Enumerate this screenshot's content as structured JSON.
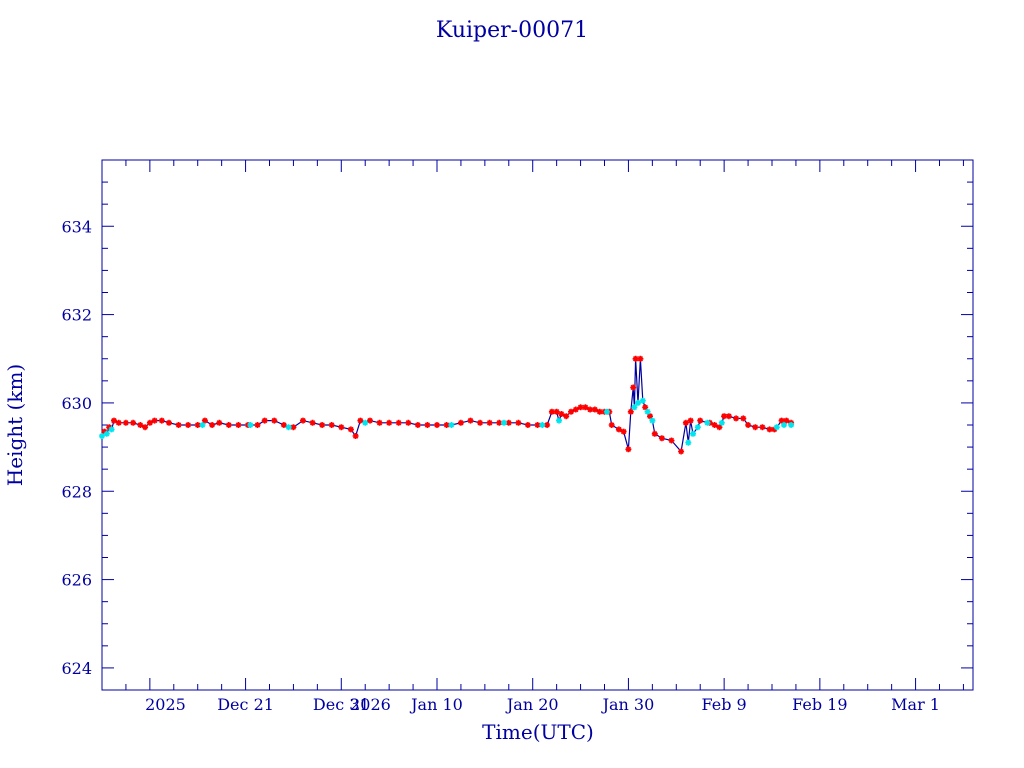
{
  "chart_data": {
    "type": "line",
    "title": "Kuiper-00071",
    "xlabel": "Time(UTC)",
    "ylabel": "Height (km)",
    "x_unit": "date (UTC)",
    "xlim": [
      "2025-12-06",
      "2026-03-07"
    ],
    "ylim": [
      623.5,
      635.5
    ],
    "x_ticks": [
      {
        "date": "2025-12-11",
        "label": "2025"
      },
      {
        "date": "2025-12-21",
        "label": "Dec 21"
      },
      {
        "date": "2025-12-31",
        "label": "Dec 31"
      },
      {
        "date": "2026-01-01",
        "label": "2026"
      },
      {
        "date": "2026-01-10",
        "label": "Jan 10"
      },
      {
        "date": "2026-01-20",
        "label": "Jan 20"
      },
      {
        "date": "2026-01-30",
        "label": "Jan 30"
      },
      {
        "date": "2026-02-09",
        "label": "Feb  9"
      },
      {
        "date": "2026-02-19",
        "label": "Feb 19"
      },
      {
        "date": "2026-03-01",
        "label": "Mar  1"
      }
    ],
    "y_ticks": [
      624,
      626,
      628,
      630,
      632,
      634
    ],
    "grid": false,
    "legend": "none",
    "colors": {
      "axis": "#0000a0",
      "line": "#0000a0",
      "marker_primary": "#ff0000",
      "marker_secondary": "#00e5ee"
    },
    "series": [
      {
        "marker": "star",
        "color": "#ff0000",
        "points": [
          [
            "2025-12-06T06:00",
            629.35
          ],
          [
            "2025-12-06T18:00",
            629.45
          ],
          [
            "2025-12-07T06:00",
            629.6
          ],
          [
            "2025-12-07T18:00",
            629.55
          ],
          [
            "2025-12-08T12:00",
            629.55
          ],
          [
            "2025-12-09T06:00",
            629.55
          ],
          [
            "2025-12-10T00:00",
            629.5
          ],
          [
            "2025-12-10T12:00",
            629.45
          ],
          [
            "2025-12-11T00:00",
            629.55
          ],
          [
            "2025-12-11T12:00",
            629.6
          ],
          [
            "2025-12-12T06:00",
            629.6
          ],
          [
            "2025-12-13T00:00",
            629.55
          ],
          [
            "2025-12-14T00:00",
            629.5
          ],
          [
            "2025-12-15T00:00",
            629.5
          ],
          [
            "2025-12-16T00:00",
            629.5
          ],
          [
            "2025-12-16T18:00",
            629.6
          ],
          [
            "2025-12-17T12:00",
            629.5
          ],
          [
            "2025-12-18T06:00",
            629.55
          ],
          [
            "2025-12-19T06:00",
            629.5
          ],
          [
            "2025-12-20T06:00",
            629.5
          ],
          [
            "2025-12-21T06:00",
            629.5
          ],
          [
            "2025-12-22T06:00",
            629.5
          ],
          [
            "2025-12-23T00:00",
            629.6
          ],
          [
            "2025-12-24T00:00",
            629.6
          ],
          [
            "2025-12-25T00:00",
            629.5
          ],
          [
            "2025-12-26T00:00",
            629.45
          ],
          [
            "2025-12-27T00:00",
            629.6
          ],
          [
            "2025-12-28T00:00",
            629.55
          ],
          [
            "2025-12-29T00:00",
            629.5
          ],
          [
            "2025-12-30T00:00",
            629.5
          ],
          [
            "2025-12-31T00:00",
            629.45
          ],
          [
            "2026-01-01T00:00",
            629.4
          ],
          [
            "2026-01-01T12:00",
            629.25
          ],
          [
            "2026-01-02T00:00",
            629.6
          ],
          [
            "2026-01-03T00:00",
            629.6
          ],
          [
            "2026-01-04T00:00",
            629.55
          ],
          [
            "2026-01-05T00:00",
            629.55
          ],
          [
            "2026-01-06T00:00",
            629.55
          ],
          [
            "2026-01-07T00:00",
            629.55
          ],
          [
            "2026-01-08T00:00",
            629.5
          ],
          [
            "2026-01-09T00:00",
            629.5
          ],
          [
            "2026-01-10T00:00",
            629.5
          ],
          [
            "2026-01-11T00:00",
            629.5
          ],
          [
            "2026-01-12T12:00",
            629.55
          ],
          [
            "2026-01-13T12:00",
            629.6
          ],
          [
            "2026-01-14T12:00",
            629.55
          ],
          [
            "2026-01-15T12:00",
            629.55
          ],
          [
            "2026-01-16T12:00",
            629.55
          ],
          [
            "2026-01-17T12:00",
            629.55
          ],
          [
            "2026-01-18T12:00",
            629.55
          ],
          [
            "2026-01-19T12:00",
            629.5
          ],
          [
            "2026-01-20T12:00",
            629.5
          ],
          [
            "2026-01-21T12:00",
            629.5
          ],
          [
            "2026-01-22T00:00",
            629.8
          ],
          [
            "2026-01-22T12:00",
            629.8
          ],
          [
            "2026-01-23T00:00",
            629.75
          ],
          [
            "2026-01-23T12:00",
            629.7
          ],
          [
            "2026-01-24T00:00",
            629.8
          ],
          [
            "2026-01-24T12:00",
            629.85
          ],
          [
            "2026-01-25T00:00",
            629.9
          ],
          [
            "2026-01-25T12:00",
            629.9
          ],
          [
            "2026-01-26T00:00",
            629.85
          ],
          [
            "2026-01-26T12:00",
            629.85
          ],
          [
            "2026-01-27T00:00",
            629.8
          ],
          [
            "2026-01-27T12:00",
            629.8
          ],
          [
            "2026-01-28T00:00",
            629.8
          ],
          [
            "2026-01-28T06:00",
            629.5
          ],
          [
            "2026-01-29T00:00",
            629.4
          ],
          [
            "2026-01-29T12:00",
            629.35
          ],
          [
            "2026-01-30T00:00",
            628.95
          ],
          [
            "2026-01-30T06:00",
            629.8
          ],
          [
            "2026-01-30T12:00",
            630.35
          ],
          [
            "2026-01-30T18:00",
            631.0
          ],
          [
            "2026-01-31T06:00",
            631.0
          ],
          [
            "2026-01-31T18:00",
            629.9
          ],
          [
            "2026-02-01T06:00",
            629.7
          ],
          [
            "2026-02-01T18:00",
            629.3
          ],
          [
            "2026-02-02T12:00",
            629.2
          ],
          [
            "2026-02-03T12:00",
            629.15
          ],
          [
            "2026-02-04T12:00",
            628.9
          ],
          [
            "2026-02-05T00:00",
            629.55
          ],
          [
            "2026-02-05T12:00",
            629.6
          ],
          [
            "2026-02-06T12:00",
            629.6
          ],
          [
            "2026-02-07T12:00",
            629.55
          ],
          [
            "2026-02-08T00:00",
            629.5
          ],
          [
            "2026-02-08T12:00",
            629.45
          ],
          [
            "2026-02-09T00:00",
            629.7
          ],
          [
            "2026-02-09T12:00",
            629.7
          ],
          [
            "2026-02-10T06:00",
            629.65
          ],
          [
            "2026-02-11T00:00",
            629.65
          ],
          [
            "2026-02-11T12:00",
            629.5
          ],
          [
            "2026-02-12T06:00",
            629.45
          ],
          [
            "2026-02-13T00:00",
            629.45
          ],
          [
            "2026-02-13T18:00",
            629.4
          ],
          [
            "2026-02-14T06:00",
            629.4
          ],
          [
            "2026-02-15T00:00",
            629.6
          ],
          [
            "2026-02-15T12:00",
            629.6
          ],
          [
            "2026-02-16T00:00",
            629.55
          ]
        ]
      },
      {
        "marker": "star",
        "color": "#00e5ee",
        "points": [
          [
            "2025-12-06T00:00",
            629.25
          ],
          [
            "2025-12-06T12:00",
            629.3
          ],
          [
            "2025-12-07T00:00",
            629.4
          ],
          [
            "2025-12-16T12:00",
            629.5
          ],
          [
            "2025-12-21T12:00",
            629.5
          ],
          [
            "2025-12-25T12:00",
            629.45
          ],
          [
            "2026-01-02T12:00",
            629.55
          ],
          [
            "2026-01-11T12:00",
            629.5
          ],
          [
            "2026-01-17T00:00",
            629.55
          ],
          [
            "2026-01-21T00:00",
            629.5
          ],
          [
            "2026-01-22T18:00",
            629.6
          ],
          [
            "2026-01-27T18:00",
            629.8
          ],
          [
            "2026-01-30T15:00",
            629.9
          ],
          [
            "2026-01-31T00:00",
            630.0
          ],
          [
            "2026-01-31T12:00",
            630.05
          ],
          [
            "2026-02-01T00:00",
            629.8
          ],
          [
            "2026-02-01T12:00",
            629.6
          ],
          [
            "2026-02-05T06:00",
            629.1
          ],
          [
            "2026-02-05T18:00",
            629.3
          ],
          [
            "2026-02-06T06:00",
            629.45
          ],
          [
            "2026-02-07T06:00",
            629.55
          ],
          [
            "2026-02-08T18:00",
            629.55
          ],
          [
            "2026-02-14T12:00",
            629.45
          ],
          [
            "2026-02-15T06:00",
            629.5
          ],
          [
            "2026-02-16T00:00",
            629.5
          ]
        ]
      }
    ]
  }
}
